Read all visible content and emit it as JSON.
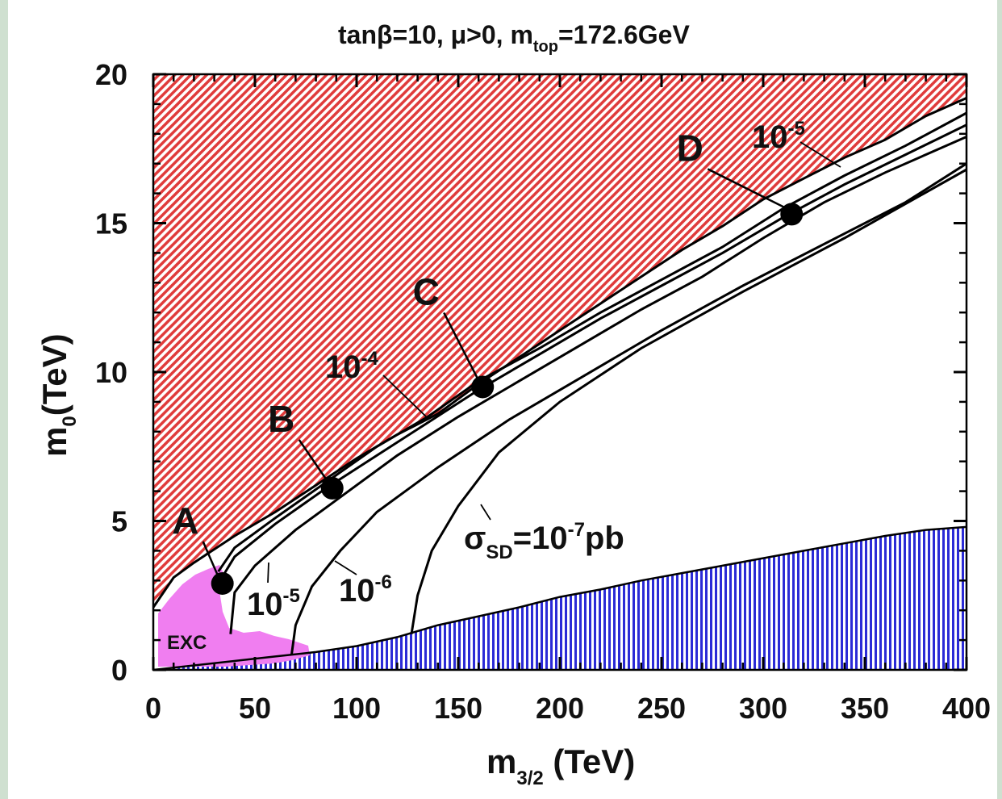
{
  "chart_data": {
    "type": "contour",
    "title": {
      "pre": "tanβ=10, μ>0, m",
      "sub": "top",
      "post": "=172.6GeV"
    },
    "xlabel": {
      "main": "m",
      "sub": "3/2",
      "unit": " (TeV)"
    },
    "ylabel": {
      "main": "m",
      "sub": "0",
      "unit": "(TeV)"
    },
    "xlim": [
      0,
      400
    ],
    "ylim": [
      0,
      20
    ],
    "xticks": [
      "0",
      "50",
      "100",
      "150",
      "200",
      "250",
      "300",
      "350",
      "400"
    ],
    "yticks": [
      "0",
      "5",
      "10",
      "15",
      "20"
    ],
    "colors": {
      "upper_excluded": "#e03b3b",
      "lower_excluded": "#2b2bd6",
      "exc_region": "#f07ef0",
      "contour": "#000000"
    },
    "regions": {
      "upper_boundary": [
        [
          0,
          2.1
        ],
        [
          10,
          3.1
        ],
        [
          20,
          3.6
        ],
        [
          40,
          4.5
        ],
        [
          60,
          5.3
        ],
        [
          80,
          6.2
        ],
        [
          100,
          7.1
        ],
        [
          120,
          7.9
        ],
        [
          140,
          8.6
        ],
        [
          160,
          9.6
        ],
        [
          180,
          10.5
        ],
        [
          200,
          11.4
        ],
        [
          220,
          12.3
        ],
        [
          240,
          13.2
        ],
        [
          260,
          14.1
        ],
        [
          280,
          14.9
        ],
        [
          300,
          15.8
        ],
        [
          320,
          16.5
        ],
        [
          340,
          17.2
        ],
        [
          360,
          17.8
        ],
        [
          380,
          18.6
        ],
        [
          400,
          19.2
        ]
      ],
      "lower_boundary": [
        [
          0,
          0
        ],
        [
          60,
          0.45
        ],
        [
          80,
          0.6
        ],
        [
          100,
          0.8
        ],
        [
          120,
          1.1
        ],
        [
          140,
          1.5
        ],
        [
          160,
          1.8
        ],
        [
          180,
          2.1
        ],
        [
          200,
          2.45
        ],
        [
          220,
          2.7
        ],
        [
          240,
          3.0
        ],
        [
          260,
          3.25
        ],
        [
          280,
          3.5
        ],
        [
          300,
          3.75
        ],
        [
          320,
          4.0
        ],
        [
          340,
          4.25
        ],
        [
          360,
          4.5
        ],
        [
          380,
          4.7
        ],
        [
          400,
          4.8
        ]
      ],
      "exc_label": "EXC"
    },
    "contours": [
      {
        "label": "10",
        "exp": "-4",
        "points": [
          [
            32,
            3.3
          ],
          [
            40,
            4.1
          ],
          [
            60,
            5.1
          ],
          [
            85,
            6.3
          ],
          [
            110,
            7.5
          ],
          [
            135,
            8.5
          ],
          [
            160,
            9.7
          ],
          [
            190,
            10.8
          ],
          [
            220,
            12.0
          ],
          [
            250,
            13.1
          ],
          [
            280,
            14.2
          ],
          [
            310,
            15.5
          ],
          [
            340,
            16.6
          ],
          [
            370,
            17.6
          ],
          [
            400,
            18.7
          ]
        ]
      },
      {
        "label": "10",
        "exp": "-5",
        "points": [
          [
            32,
            2.9
          ],
          [
            40,
            3.8
          ],
          [
            60,
            4.9
          ],
          [
            85,
            6.1
          ],
          [
            110,
            7.2
          ],
          [
            135,
            8.3
          ],
          [
            160,
            9.4
          ],
          [
            190,
            10.6
          ],
          [
            220,
            11.8
          ],
          [
            250,
            12.9
          ],
          [
            280,
            14.0
          ],
          [
            310,
            15.2
          ],
          [
            340,
            16.3
          ],
          [
            370,
            17.3
          ],
          [
            400,
            18.3
          ]
        ]
      },
      {
        "label": "10",
        "exp": "-5",
        "points": [
          [
            38,
            1.2
          ],
          [
            40,
            2.6
          ],
          [
            50,
            3.5
          ],
          [
            70,
            4.7
          ],
          [
            90,
            5.7
          ],
          [
            120,
            7.2
          ],
          [
            150,
            8.5
          ],
          [
            180,
            9.7
          ],
          [
            210,
            10.9
          ],
          [
            240,
            12.1
          ],
          [
            270,
            13.2
          ],
          [
            300,
            14.5
          ],
          [
            330,
            15.7
          ],
          [
            360,
            16.7
          ],
          [
            400,
            17.9
          ]
        ]
      },
      {
        "label": "10",
        "exp": "-6",
        "points": [
          [
            68,
            0.5
          ],
          [
            70,
            1.5
          ],
          [
            78,
            2.8
          ],
          [
            92,
            4.0
          ],
          [
            110,
            5.3
          ],
          [
            140,
            6.8
          ],
          [
            175,
            8.4
          ],
          [
            210,
            9.8
          ],
          [
            250,
            11.4
          ],
          [
            290,
            12.9
          ],
          [
            330,
            14.3
          ],
          [
            370,
            15.7
          ],
          [
            400,
            17.0
          ]
        ]
      },
      {
        "label": "σ",
        "sub": "SD",
        "value": "=10",
        "exp": "-7",
        "unit": "pb",
        "points": [
          [
            127,
            1.2
          ],
          [
            130,
            2.5
          ],
          [
            137,
            4.0
          ],
          [
            150,
            5.5
          ],
          [
            170,
            7.3
          ],
          [
            200,
            9.0
          ],
          [
            240,
            10.8
          ],
          [
            290,
            12.7
          ],
          [
            340,
            14.5
          ],
          [
            400,
            16.8
          ]
        ]
      }
    ],
    "benchmarks": [
      {
        "name": "A",
        "x": 34,
        "y": 2.9
      },
      {
        "name": "B",
        "x": 88,
        "y": 6.1
      },
      {
        "name": "C",
        "x": 162,
        "y": 9.5
      },
      {
        "name": "D",
        "x": 314,
        "y": 15.3
      }
    ]
  }
}
